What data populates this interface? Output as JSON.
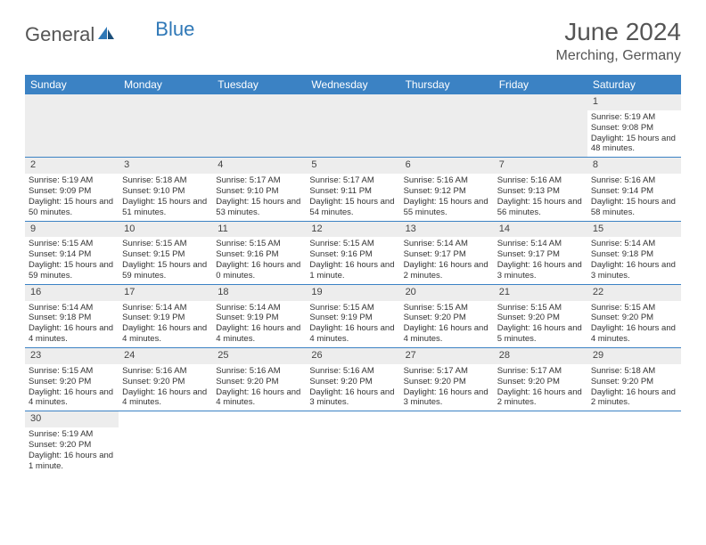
{
  "brand": {
    "part1": "General",
    "part2": "Blue"
  },
  "title": "June 2024",
  "location": "Merching, Germany",
  "colors": {
    "header_bg": "#3b82c4",
    "header_text": "#ffffff",
    "daynum_bg": "#ededed",
    "border": "#3b82c4",
    "text": "#333333",
    "title_text": "#555555"
  },
  "weekdays": [
    "Sunday",
    "Monday",
    "Tuesday",
    "Wednesday",
    "Thursday",
    "Friday",
    "Saturday"
  ],
  "weeks": [
    [
      null,
      null,
      null,
      null,
      null,
      null,
      {
        "n": "1",
        "sr": "Sunrise: 5:19 AM",
        "ss": "Sunset: 9:08 PM",
        "dl": "Daylight: 15 hours and 48 minutes."
      }
    ],
    [
      {
        "n": "2",
        "sr": "Sunrise: 5:19 AM",
        "ss": "Sunset: 9:09 PM",
        "dl": "Daylight: 15 hours and 50 minutes."
      },
      {
        "n": "3",
        "sr": "Sunrise: 5:18 AM",
        "ss": "Sunset: 9:10 PM",
        "dl": "Daylight: 15 hours and 51 minutes."
      },
      {
        "n": "4",
        "sr": "Sunrise: 5:17 AM",
        "ss": "Sunset: 9:10 PM",
        "dl": "Daylight: 15 hours and 53 minutes."
      },
      {
        "n": "5",
        "sr": "Sunrise: 5:17 AM",
        "ss": "Sunset: 9:11 PM",
        "dl": "Daylight: 15 hours and 54 minutes."
      },
      {
        "n": "6",
        "sr": "Sunrise: 5:16 AM",
        "ss": "Sunset: 9:12 PM",
        "dl": "Daylight: 15 hours and 55 minutes."
      },
      {
        "n": "7",
        "sr": "Sunrise: 5:16 AM",
        "ss": "Sunset: 9:13 PM",
        "dl": "Daylight: 15 hours and 56 minutes."
      },
      {
        "n": "8",
        "sr": "Sunrise: 5:16 AM",
        "ss": "Sunset: 9:14 PM",
        "dl": "Daylight: 15 hours and 58 minutes."
      }
    ],
    [
      {
        "n": "9",
        "sr": "Sunrise: 5:15 AM",
        "ss": "Sunset: 9:14 PM",
        "dl": "Daylight: 15 hours and 59 minutes."
      },
      {
        "n": "10",
        "sr": "Sunrise: 5:15 AM",
        "ss": "Sunset: 9:15 PM",
        "dl": "Daylight: 15 hours and 59 minutes."
      },
      {
        "n": "11",
        "sr": "Sunrise: 5:15 AM",
        "ss": "Sunset: 9:16 PM",
        "dl": "Daylight: 16 hours and 0 minutes."
      },
      {
        "n": "12",
        "sr": "Sunrise: 5:15 AM",
        "ss": "Sunset: 9:16 PM",
        "dl": "Daylight: 16 hours and 1 minute."
      },
      {
        "n": "13",
        "sr": "Sunrise: 5:14 AM",
        "ss": "Sunset: 9:17 PM",
        "dl": "Daylight: 16 hours and 2 minutes."
      },
      {
        "n": "14",
        "sr": "Sunrise: 5:14 AM",
        "ss": "Sunset: 9:17 PM",
        "dl": "Daylight: 16 hours and 3 minutes."
      },
      {
        "n": "15",
        "sr": "Sunrise: 5:14 AM",
        "ss": "Sunset: 9:18 PM",
        "dl": "Daylight: 16 hours and 3 minutes."
      }
    ],
    [
      {
        "n": "16",
        "sr": "Sunrise: 5:14 AM",
        "ss": "Sunset: 9:18 PM",
        "dl": "Daylight: 16 hours and 4 minutes."
      },
      {
        "n": "17",
        "sr": "Sunrise: 5:14 AM",
        "ss": "Sunset: 9:19 PM",
        "dl": "Daylight: 16 hours and 4 minutes."
      },
      {
        "n": "18",
        "sr": "Sunrise: 5:14 AM",
        "ss": "Sunset: 9:19 PM",
        "dl": "Daylight: 16 hours and 4 minutes."
      },
      {
        "n": "19",
        "sr": "Sunrise: 5:15 AM",
        "ss": "Sunset: 9:19 PM",
        "dl": "Daylight: 16 hours and 4 minutes."
      },
      {
        "n": "20",
        "sr": "Sunrise: 5:15 AM",
        "ss": "Sunset: 9:20 PM",
        "dl": "Daylight: 16 hours and 4 minutes."
      },
      {
        "n": "21",
        "sr": "Sunrise: 5:15 AM",
        "ss": "Sunset: 9:20 PM",
        "dl": "Daylight: 16 hours and 5 minutes."
      },
      {
        "n": "22",
        "sr": "Sunrise: 5:15 AM",
        "ss": "Sunset: 9:20 PM",
        "dl": "Daylight: 16 hours and 4 minutes."
      }
    ],
    [
      {
        "n": "23",
        "sr": "Sunrise: 5:15 AM",
        "ss": "Sunset: 9:20 PM",
        "dl": "Daylight: 16 hours and 4 minutes."
      },
      {
        "n": "24",
        "sr": "Sunrise: 5:16 AM",
        "ss": "Sunset: 9:20 PM",
        "dl": "Daylight: 16 hours and 4 minutes."
      },
      {
        "n": "25",
        "sr": "Sunrise: 5:16 AM",
        "ss": "Sunset: 9:20 PM",
        "dl": "Daylight: 16 hours and 4 minutes."
      },
      {
        "n": "26",
        "sr": "Sunrise: 5:16 AM",
        "ss": "Sunset: 9:20 PM",
        "dl": "Daylight: 16 hours and 3 minutes."
      },
      {
        "n": "27",
        "sr": "Sunrise: 5:17 AM",
        "ss": "Sunset: 9:20 PM",
        "dl": "Daylight: 16 hours and 3 minutes."
      },
      {
        "n": "28",
        "sr": "Sunrise: 5:17 AM",
        "ss": "Sunset: 9:20 PM",
        "dl": "Daylight: 16 hours and 2 minutes."
      },
      {
        "n": "29",
        "sr": "Sunrise: 5:18 AM",
        "ss": "Sunset: 9:20 PM",
        "dl": "Daylight: 16 hours and 2 minutes."
      }
    ],
    [
      {
        "n": "30",
        "sr": "Sunrise: 5:19 AM",
        "ss": "Sunset: 9:20 PM",
        "dl": "Daylight: 16 hours and 1 minute."
      },
      null,
      null,
      null,
      null,
      null,
      null
    ]
  ]
}
